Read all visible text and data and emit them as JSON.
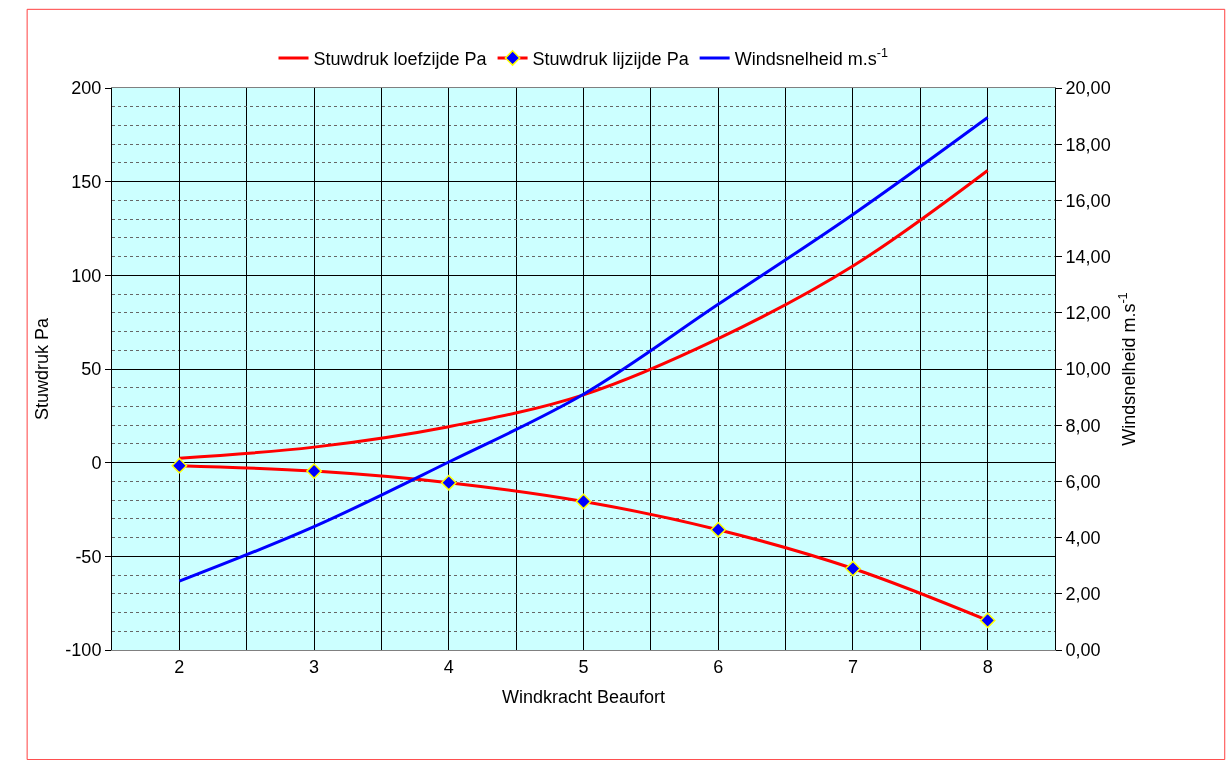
{
  "chart_data": {
    "type": "line",
    "xlabel": "Windkracht Beaufort",
    "ylabel": "Stuwdruk Pa",
    "y2label": "Windsnelheid m.s$^{-1}$",
    "x": [
      2,
      3,
      4,
      5,
      6,
      7,
      8
    ],
    "series": [
      {
        "name": "Stuwdruk loefzijde Pa",
        "color": "#ff0000",
        "marker": "none",
        "values": [
          2.4,
          8.3,
          19.2,
          36.2,
          66.2,
          105,
          156
        ]
      },
      {
        "name": "Stuwdruk lijzijde Pa",
        "color": "#ff0000",
        "marker": "diamond",
        "values": [
          -1.6,
          -4.5,
          -10.7,
          -20.7,
          -35.8,
          -56.5,
          -84.2
        ]
      },
      {
        "name": "Windsnelheid m.s$^{-1}$",
        "color": "#0000ff",
        "marker": "none",
        "axis": "y2",
        "values": [
          2.45,
          4.39,
          6.69,
          9.1,
          12.3,
          15.5,
          18.95
        ]
      }
    ],
    "xlim": [
      1.5,
      8.5
    ],
    "xticks": [
      2,
      {
        "value": 2.5,
        "label": null
      },
      3,
      {
        "value": 3.5,
        "label": null
      },
      4,
      {
        "value": 4.5,
        "label": null
      },
      5,
      {
        "value": 5.5,
        "label": null
      },
      6,
      {
        "value": 6.5,
        "label": null
      },
      7,
      {
        "value": 7.5,
        "label": null
      },
      8
    ],
    "ylim": [
      -100,
      200
    ],
    "yticks": [
      -100,
      {
        "value": -90,
        "label": null
      },
      {
        "value": -80,
        "label": null
      },
      {
        "value": -70,
        "label": null
      },
      {
        "value": -60,
        "label": null
      },
      -50,
      {
        "value": -40,
        "label": null
      },
      {
        "value": -30,
        "label": null
      },
      {
        "value": -20,
        "label": null
      },
      {
        "value": -10,
        "label": null
      },
      0,
      {
        "value": 10,
        "label": null
      },
      {
        "value": 20,
        "label": null
      },
      {
        "value": 30,
        "label": null
      },
      {
        "value": 40,
        "label": null
      },
      50,
      {
        "value": 60,
        "label": null
      },
      {
        "value": 70,
        "label": null
      },
      {
        "value": 80,
        "label": null
      },
      {
        "value": 90,
        "label": null
      },
      100,
      {
        "value": 110,
        "label": null
      },
      {
        "value": 120,
        "label": null
      },
      {
        "value": 130,
        "label": null
      },
      {
        "value": 140,
        "label": null
      },
      150,
      {
        "value": 160,
        "label": null
      },
      {
        "value": 170,
        "label": null
      },
      {
        "value": 180,
        "label": null
      },
      {
        "value": 190,
        "label": null
      },
      200
    ],
    "y2lim": [
      0,
      20
    ],
    "y2ticks": [
      {
        "value": 0,
        "label": "0,00"
      },
      {
        "value": 2,
        "label": "2,00"
      },
      {
        "value": 4,
        "label": "4,00"
      },
      {
        "value": 6,
        "label": "6,00"
      },
      {
        "value": 8,
        "label": "8,00"
      },
      {
        "value": 10,
        "label": "10,00"
      },
      {
        "value": 12,
        "label": "12,00"
      },
      {
        "value": 14,
        "label": "14,00"
      },
      {
        "value": 16,
        "label": "16,00"
      },
      {
        "value": 18,
        "label": "18,00"
      },
      {
        "value": 20,
        "label": "20,00"
      }
    ],
    "grid": true,
    "legend": "top"
  }
}
